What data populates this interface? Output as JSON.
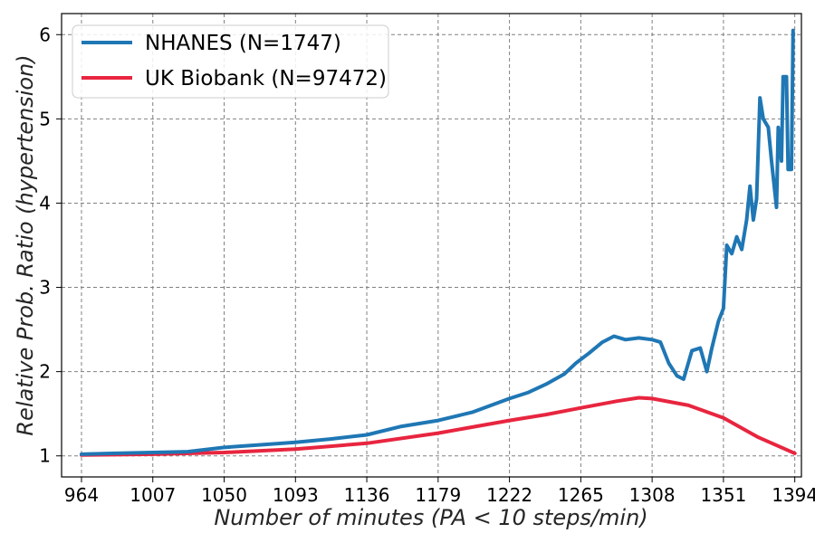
{
  "chart_data": {
    "type": "line",
    "title": "",
    "xlabel": "Number of minutes (PA < 10 steps/min)",
    "ylabel": "Relative Prob. Ratio (hypertension)",
    "xlim": [
      952,
      1398
    ],
    "ylim": [
      0.75,
      6.25
    ],
    "x_ticks": [
      964,
      1007,
      1050,
      1093,
      1136,
      1179,
      1222,
      1265,
      1308,
      1351,
      1394
    ],
    "y_ticks": [
      1,
      2,
      3,
      4,
      5,
      6
    ],
    "grid": true,
    "legend_position": "top-left",
    "series": [
      {
        "name": "NHANES (N=1747)",
        "color": "#1f77b4",
        "points": [
          [
            964,
            1.02
          ],
          [
            985,
            1.03
          ],
          [
            1007,
            1.04
          ],
          [
            1028,
            1.05
          ],
          [
            1050,
            1.1
          ],
          [
            1071,
            1.13
          ],
          [
            1093,
            1.16
          ],
          [
            1114,
            1.2
          ],
          [
            1136,
            1.25
          ],
          [
            1157,
            1.35
          ],
          [
            1179,
            1.42
          ],
          [
            1200,
            1.52
          ],
          [
            1222,
            1.68
          ],
          [
            1233,
            1.75
          ],
          [
            1244,
            1.85
          ],
          [
            1255,
            1.97
          ],
          [
            1262,
            2.1
          ],
          [
            1270,
            2.22
          ],
          [
            1278,
            2.35
          ],
          [
            1285,
            2.42
          ],
          [
            1292,
            2.38
          ],
          [
            1300,
            2.4
          ],
          [
            1308,
            2.38
          ],
          [
            1313,
            2.35
          ],
          [
            1318,
            2.1
          ],
          [
            1323,
            1.95
          ],
          [
            1327,
            1.91
          ],
          [
            1332,
            2.25
          ],
          [
            1337,
            2.28
          ],
          [
            1341,
            2.0
          ],
          [
            1344,
            2.28
          ],
          [
            1348,
            2.6
          ],
          [
            1351,
            2.75
          ],
          [
            1353,
            3.5
          ],
          [
            1356,
            3.4
          ],
          [
            1359,
            3.6
          ],
          [
            1362,
            3.45
          ],
          [
            1365,
            3.8
          ],
          [
            1367,
            4.2
          ],
          [
            1369,
            3.8
          ],
          [
            1371,
            4.05
          ],
          [
            1373,
            5.25
          ],
          [
            1375,
            5.0
          ],
          [
            1378,
            4.9
          ],
          [
            1380,
            4.5
          ],
          [
            1383,
            3.95
          ],
          [
            1384,
            4.9
          ],
          [
            1386,
            4.5
          ],
          [
            1387,
            5.5
          ],
          [
            1389,
            5.5
          ],
          [
            1390,
            4.4
          ],
          [
            1392,
            4.4
          ],
          [
            1393,
            6.05
          ]
        ]
      },
      {
        "name": "UK Biobank (N=97472)",
        "color": "#e8253f",
        "points": [
          [
            964,
            1.01
          ],
          [
            1007,
            1.02
          ],
          [
            1050,
            1.04
          ],
          [
            1093,
            1.08
          ],
          [
            1136,
            1.15
          ],
          [
            1179,
            1.27
          ],
          [
            1222,
            1.42
          ],
          [
            1244,
            1.49
          ],
          [
            1265,
            1.57
          ],
          [
            1287,
            1.65
          ],
          [
            1300,
            1.69
          ],
          [
            1308,
            1.68
          ],
          [
            1330,
            1.6
          ],
          [
            1351,
            1.45
          ],
          [
            1372,
            1.22
          ],
          [
            1394,
            1.03
          ]
        ]
      }
    ]
  }
}
